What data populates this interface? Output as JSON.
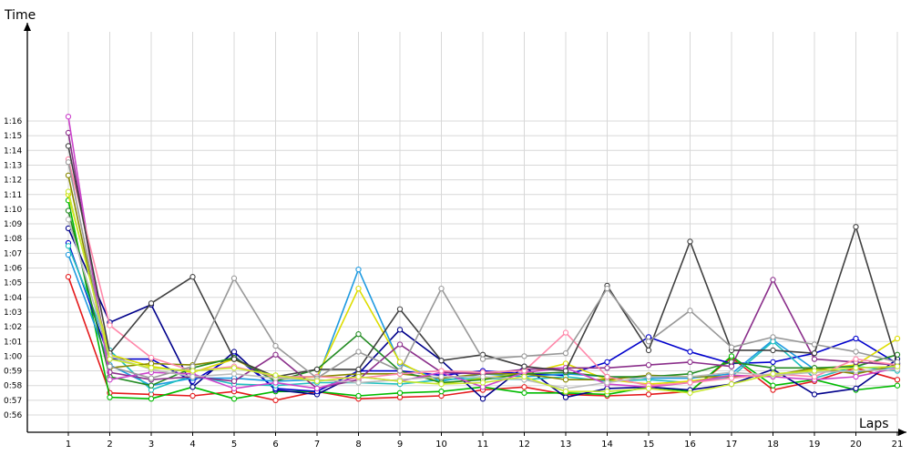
{
  "chart_data": {
    "type": "line",
    "title": "",
    "xlabel": "Laps",
    "ylabel": "Time",
    "x": [
      1,
      2,
      3,
      4,
      5,
      6,
      7,
      8,
      9,
      10,
      11,
      12,
      13,
      14,
      15,
      16,
      17,
      18,
      19,
      20,
      21
    ],
    "x_tick_labels": [
      "1",
      "2",
      "3",
      "4",
      "5",
      "6",
      "7",
      "8",
      "9",
      "10",
      "11",
      "12",
      "13",
      "14",
      "15",
      "16",
      "17",
      "18",
      "19",
      "20",
      "21"
    ],
    "y_unit": "seconds",
    "ylim": [
      55,
      78
    ],
    "y_ticks": [
      56,
      57,
      58,
      59,
      60,
      61,
      62,
      63,
      64,
      65,
      66,
      67,
      68,
      69,
      70,
      71,
      72,
      73,
      74,
      75,
      76
    ],
    "y_tick_labels": [
      "0:56",
      "0:57",
      "0:58",
      "0:59",
      "1:00",
      "1:01",
      "1:02",
      "1:03",
      "1:04",
      "1:05",
      "1:06",
      "1:07",
      "1:08",
      "1:09",
      "1:10",
      "1:11",
      "1:12",
      "1:13",
      "1:14",
      "1:15",
      "1:16"
    ],
    "grid": true,
    "legend": "none",
    "series": [
      {
        "color": "#e41a1c",
        "values": [
          65.4,
          57.5,
          57.4,
          57.3,
          57.6,
          57.0,
          57.6,
          57.1,
          57.2,
          57.3,
          57.7,
          57.9,
          57.4,
          57.3,
          57.4,
          57.6,
          59.9,
          57.7,
          58.3,
          59.2,
          58.4
        ]
      },
      {
        "color": "#00bb00",
        "values": [
          70.6,
          57.2,
          57.1,
          57.9,
          57.1,
          57.6,
          57.6,
          57.3,
          57.5,
          57.6,
          57.9,
          57.5,
          57.5,
          57.4,
          57.9,
          57.6,
          60.0,
          58.0,
          58.4,
          57.7,
          58.0
        ]
      },
      {
        "color": "#00008b",
        "values": [
          68.7,
          62.3,
          63.5,
          57.9,
          60.3,
          57.7,
          57.4,
          58.8,
          61.8,
          59.7,
          57.1,
          59.3,
          57.2,
          57.8,
          57.9,
          57.7,
          58.1,
          59.1,
          57.4,
          57.8,
          59.8
        ]
      },
      {
        "color": "#0000cc",
        "values": [
          67.7,
          59.8,
          59.8,
          58.3,
          60.0,
          57.8,
          57.6,
          59.0,
          59.0,
          58.7,
          59.0,
          58.8,
          58.7,
          59.6,
          61.3,
          60.3,
          59.5,
          59.6,
          60.2,
          61.2,
          59.5
        ]
      },
      {
        "color": "#1e9ae0",
        "values": [
          66.9,
          59.4,
          58.0,
          58.5,
          58.5,
          58.3,
          58.4,
          65.9,
          59.5,
          58.3,
          58.8,
          58.6,
          58.8,
          58.6,
          58.5,
          58.5,
          58.8,
          61.1,
          59.1,
          58.9,
          59.3
        ]
      },
      {
        "color": "#20c0c0",
        "values": [
          67.5,
          60.4,
          57.7,
          58.7,
          58.1,
          58.0,
          58.2,
          58.2,
          58.1,
          58.4,
          58.5,
          58.4,
          58.6,
          58.3,
          58.4,
          58.2,
          58.6,
          61.0,
          58.5,
          59.3,
          59.0
        ]
      },
      {
        "color": "#dddd00",
        "values": [
          71.0,
          60.1,
          59.3,
          58.9,
          59.8,
          58.4,
          58.6,
          64.6,
          59.6,
          58.1,
          58.5,
          58.8,
          59.5,
          58.4,
          58.1,
          58.3,
          58.7,
          58.6,
          59.1,
          59.4,
          61.2
        ]
      },
      {
        "color": "#888800",
        "values": [
          72.3,
          59.2,
          59.5,
          59.4,
          59.8,
          58.6,
          58.6,
          58.8,
          58.8,
          58.5,
          58.8,
          58.8,
          58.4,
          58.4,
          58.7,
          58.6,
          58.6,
          58.7,
          59.2,
          58.8,
          59.4
        ]
      },
      {
        "color": "#228b22",
        "values": [
          69.9,
          58.6,
          58.0,
          59.2,
          59.9,
          58.3,
          59.1,
          61.5,
          59.0,
          58.2,
          58.4,
          58.8,
          58.9,
          58.6,
          58.6,
          58.8,
          59.6,
          59.2,
          59.2,
          59.3,
          60.1
        ]
      },
      {
        "color": "#8b2f8b",
        "values": [
          75.2,
          58.9,
          58.4,
          58.6,
          58.3,
          60.1,
          57.8,
          58.4,
          60.8,
          58.9,
          58.8,
          59.1,
          59.2,
          59.2,
          59.4,
          59.6,
          59.3,
          65.2,
          59.8,
          59.6,
          59.4
        ]
      },
      {
        "color": "#cc44cc",
        "values": [
          76.3,
          58.4,
          58.9,
          58.8,
          57.8,
          58.2,
          57.8,
          58.6,
          58.3,
          58.9,
          57.9,
          58.9,
          59.2,
          58.1,
          57.9,
          58.2,
          58.7,
          58.6,
          58.4,
          58.6,
          59.2
        ]
      },
      {
        "color": "#ff88aa",
        "values": [
          73.4,
          62.1,
          59.9,
          59.0,
          59.3,
          58.6,
          58.6,
          58.5,
          58.8,
          59.0,
          58.9,
          59.0,
          61.6,
          58.6,
          58.0,
          58.2,
          58.5,
          58.8,
          58.6,
          59.8,
          59.4
        ]
      },
      {
        "color": "#404040",
        "values": [
          74.3,
          60.2,
          63.6,
          65.4,
          59.8,
          58.6,
          59.1,
          59.1,
          63.2,
          59.7,
          60.1,
          59.3,
          59.0,
          64.8,
          60.4,
          67.8,
          60.4,
          60.4,
          60.2,
          68.8,
          59.5
        ]
      },
      {
        "color": "#999999",
        "values": [
          73.2,
          59.3,
          58.5,
          59.3,
          65.3,
          60.7,
          58.5,
          60.3,
          59.0,
          64.6,
          59.8,
          60.0,
          60.2,
          64.6,
          61.0,
          63.1,
          60.6,
          61.3,
          60.8,
          60.3,
          59.6
        ]
      },
      {
        "color": "#bbbbbb",
        "values": [
          69.3,
          60.0,
          59.1,
          58.6,
          58.8,
          58.5,
          58.4,
          58.2,
          58.4,
          58.6,
          58.6,
          58.4,
          57.8,
          58.2,
          58.6,
          58.6,
          58.9,
          58.7,
          58.9,
          59.0,
          59.1
        ]
      },
      {
        "color": "#c8e830",
        "values": [
          71.2,
          59.8,
          59.2,
          59.0,
          59.2,
          58.7,
          58.3,
          58.6,
          58.3,
          58.1,
          58.2,
          58.6,
          57.6,
          57.6,
          57.8,
          57.5,
          58.1,
          58.8,
          59.0,
          59.2,
          59.3
        ]
      }
    ]
  }
}
